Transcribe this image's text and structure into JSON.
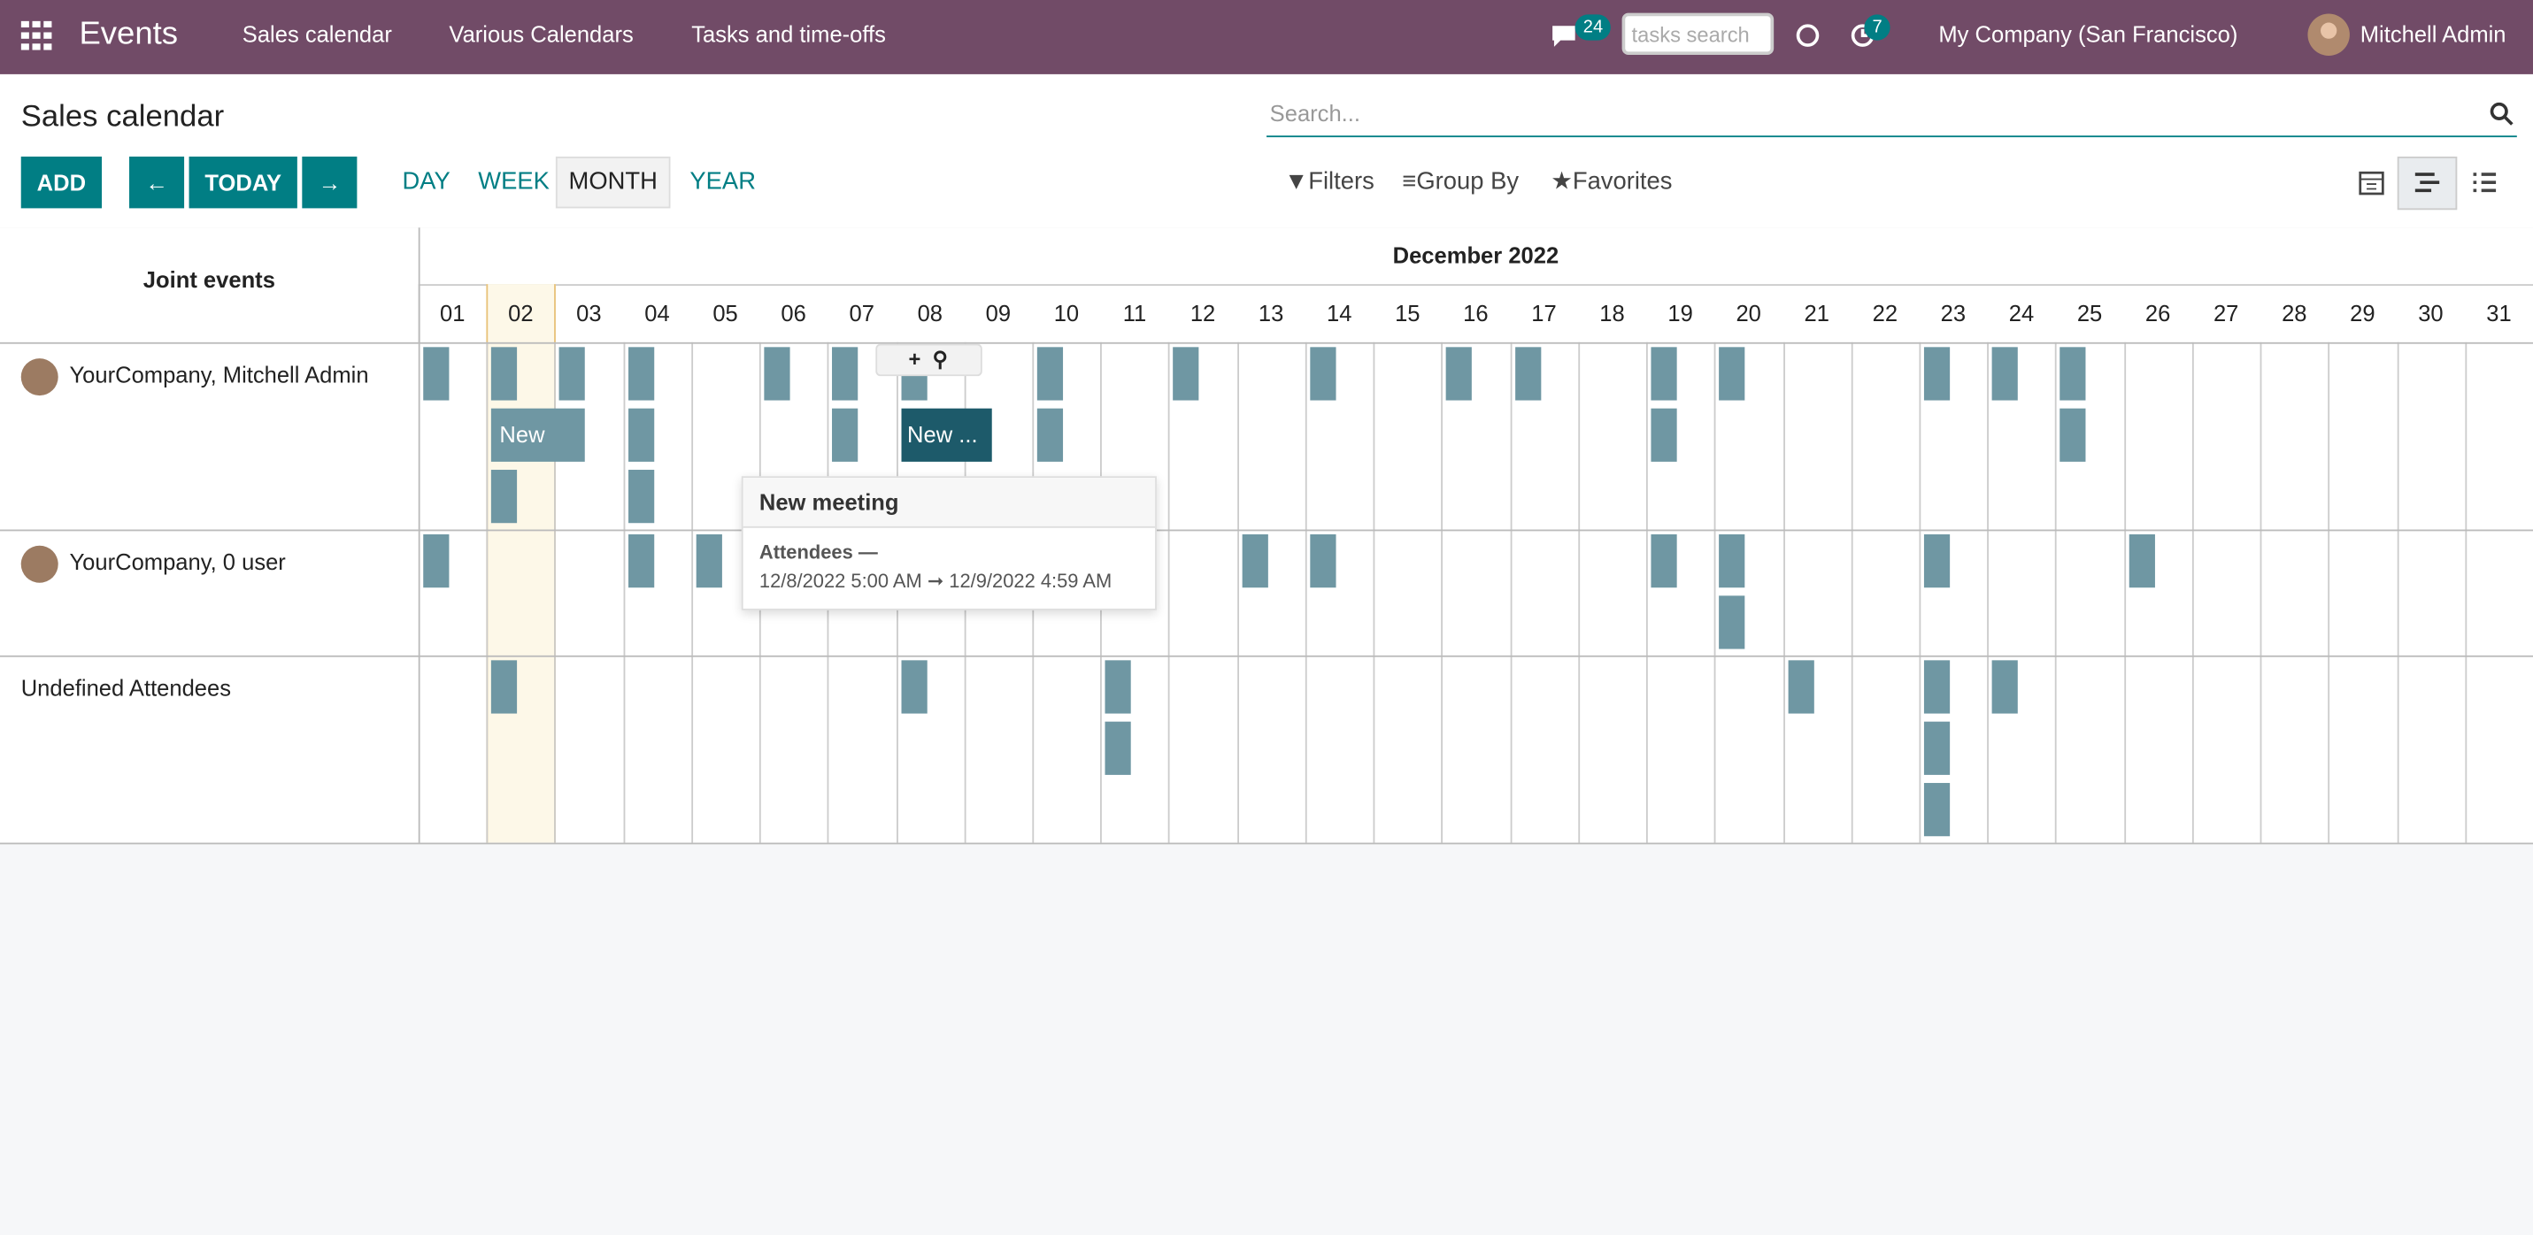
{
  "navbar": {
    "app": "Events",
    "menu": [
      "Sales calendar",
      "Various Calendars",
      "Tasks and time-offs"
    ],
    "messages_badge": "24",
    "search_placeholder": "tasks search",
    "activities_badge": "7",
    "company": "My Company (San Francisco)",
    "user": "Mitchell Admin"
  },
  "control_panel": {
    "title": "Sales calendar",
    "search_placeholder": "Search...",
    "add": "ADD",
    "today": "TODAY",
    "scales": [
      "DAY",
      "WEEK",
      "MONTH",
      "YEAR"
    ],
    "filters": "Filters",
    "group_by": "Group By",
    "favorites": "Favorites"
  },
  "gantt": {
    "corner": "Joint events",
    "month": "December 2022",
    "days": [
      "01",
      "02",
      "03",
      "04",
      "05",
      "06",
      "07",
      "08",
      "09",
      "10",
      "11",
      "12",
      "13",
      "14",
      "15",
      "16",
      "17",
      "18",
      "19",
      "20",
      "21",
      "22",
      "23",
      "24",
      "25",
      "26",
      "27",
      "28",
      "29",
      "30",
      "31"
    ],
    "rows": [
      {
        "label": "YourCompany, Mitchell Admin"
      },
      {
        "label": "YourCompany, 0 user"
      },
      {
        "label": "Undefined Attendees"
      }
    ],
    "pills": [
      "New",
      "New ..."
    ]
  },
  "popover": {
    "title": "New meeting",
    "attendees": "Attendees —",
    "dates": "12/8/2022 5:00 AM ➞ 12/9/2022 4:59 AM"
  }
}
